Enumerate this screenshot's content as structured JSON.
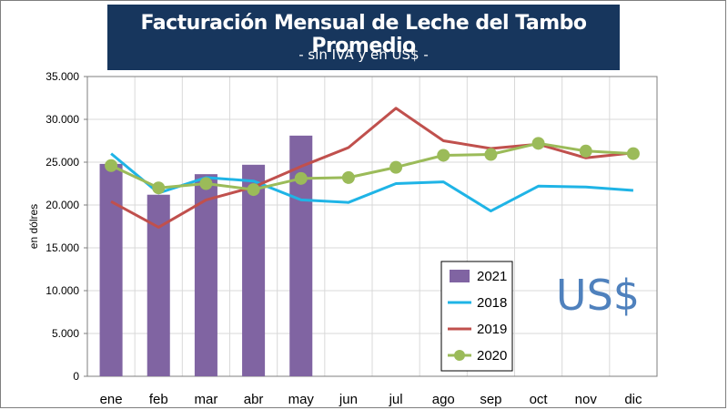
{
  "header": {
    "title": "Facturación Mensual de Leche del Tambo Promedio",
    "subtitle": "- sin IVA y en US$ -"
  },
  "badge_text": "US$",
  "colors": {
    "title_bg": "#17365d",
    "bar_2021": "#8064a2",
    "line_2018": "#1fb4e6",
    "line_2019": "#c0504d",
    "line_2020": "#9bbb59",
    "badge": "#4f81bd"
  },
  "chart_data": {
    "type": "bar",
    "title": "",
    "xlabel": "",
    "ylabel": "en dólres",
    "ylim": [
      0,
      35000
    ],
    "yticks": [
      "0",
      "5.000",
      "10.000",
      "15.000",
      "20.000",
      "25.000",
      "30.000",
      "35.000"
    ],
    "categories": [
      "ene",
      "feb",
      "mar",
      "abr",
      "may",
      "jun",
      "jul",
      "ago",
      "sep",
      "oct",
      "nov",
      "dic"
    ],
    "grid": true,
    "legend_position": "bottom-right",
    "series": [
      {
        "name": "2021",
        "type": "bar",
        "values": [
          24800,
          21200,
          23600,
          24700,
          28100,
          null,
          null,
          null,
          null,
          null,
          null,
          null
        ]
      },
      {
        "name": "2018",
        "type": "line",
        "values": [
          26000,
          21400,
          23200,
          22800,
          20600,
          20300,
          22500,
          22700,
          19300,
          22200,
          22100,
          21700
        ]
      },
      {
        "name": "2019",
        "type": "line",
        "values": [
          20400,
          17400,
          20600,
          22100,
          24500,
          26700,
          31300,
          27500,
          26600,
          27100,
          25500,
          26100
        ]
      },
      {
        "name": "2020",
        "type": "line",
        "markers": true,
        "values": [
          24600,
          22000,
          22500,
          21800,
          23100,
          23200,
          24400,
          25800,
          25900,
          27200,
          26300,
          26000
        ]
      }
    ]
  }
}
